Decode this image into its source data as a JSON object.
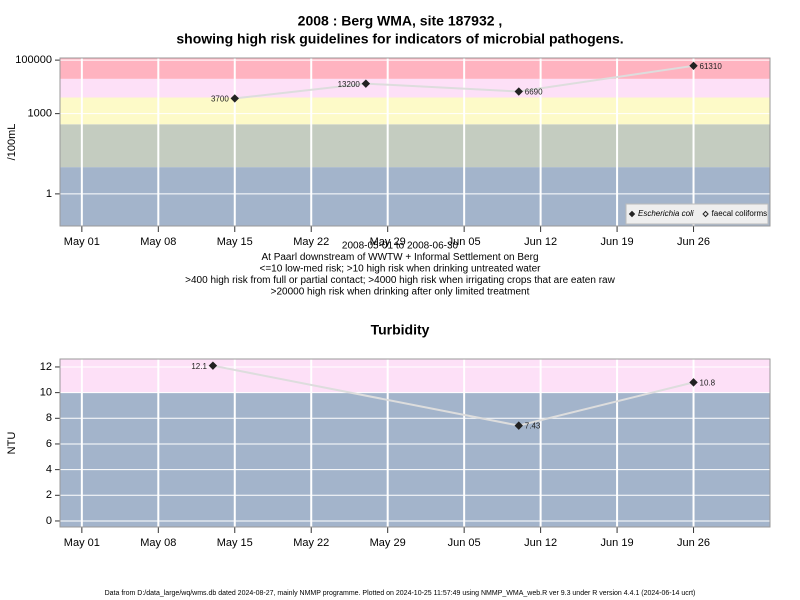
{
  "chart_data": [
    {
      "type": "line",
      "title": [
        "2008 : Berg WMA, site 187932 ,",
        "showing high risk guidelines for indicators of microbial pathogens."
      ],
      "y_label": "/100mL",
      "log_y": true,
      "ylim": [
        0.063,
        120000
      ],
      "yticks": [
        1,
        1000,
        100000
      ],
      "xlim": [
        "2008-04-29",
        "2008-07-03"
      ],
      "xticks": [
        {
          "value": "2008-05-01",
          "label": "May 01"
        },
        {
          "value": "2008-05-08",
          "label": "May 08"
        },
        {
          "value": "2008-05-15",
          "label": "May 15"
        },
        {
          "value": "2008-05-22",
          "label": "May 22"
        },
        {
          "value": "2008-05-29",
          "label": "May 29"
        },
        {
          "value": "2008-06-05",
          "label": "Jun 05"
        },
        {
          "value": "2008-06-12",
          "label": "Jun 12"
        },
        {
          "value": "2008-06-19",
          "label": "Jun 19"
        },
        {
          "value": "2008-06-26",
          "label": "Jun 26"
        }
      ],
      "grid": true,
      "bands": [
        {
          "to": 10,
          "color": "#a3b4cb"
        },
        {
          "from": 10,
          "to": 400,
          "color": "#c4ccc0"
        },
        {
          "from": 400,
          "to": 4000,
          "color": "#fdfac8"
        },
        {
          "from": 4000,
          "to": 20000,
          "color": "#fde0f7"
        },
        {
          "from": 20000,
          "color": "#ffb3c0"
        }
      ],
      "x": [
        "2008-05-15",
        "2008-05-27",
        "2008-06-10",
        "2008-06-26"
      ],
      "series": [
        {
          "name": "Escherichia coli",
          "color": "#222222",
          "marker": "diamond",
          "values": [
            3700,
            13200,
            6690,
            61310
          ]
        },
        {
          "name": "faecal coliforms",
          "color": "#222222",
          "marker": "open-diamond",
          "values": [
            null,
            null,
            null,
            null
          ]
        }
      ],
      "line_color": "#dddddd",
      "data_labels": true,
      "legend": "bottom-right",
      "notes": [
        "2008-05-01 to 2008-06-30",
        "At Paarl downstream of WWTW + Informal Settlement on Berg",
        "<=10 low-med risk; >10 high risk when drinking untreated water",
        ">400 high risk from full or partial contact; >4000 high risk when irrigating crops that are eaten raw",
        ">20000 high risk when drinking after only limited treatment"
      ]
    },
    {
      "type": "line",
      "title": [
        "Turbidity"
      ],
      "y_label": "NTU",
      "log_y": false,
      "ylim": [
        -0.47,
        12.62
      ],
      "yticks": [
        0,
        2,
        4,
        6,
        8,
        10,
        12
      ],
      "xlim": [
        "2008-04-29",
        "2008-07-03"
      ],
      "xticks": [
        {
          "value": "2008-05-01",
          "label": "May 01"
        },
        {
          "value": "2008-05-08",
          "label": "May 08"
        },
        {
          "value": "2008-05-15",
          "label": "May 15"
        },
        {
          "value": "2008-05-22",
          "label": "May 22"
        },
        {
          "value": "2008-05-29",
          "label": "May 29"
        },
        {
          "value": "2008-06-05",
          "label": "Jun 05"
        },
        {
          "value": "2008-06-12",
          "label": "Jun 12"
        },
        {
          "value": "2008-06-19",
          "label": "Jun 19"
        },
        {
          "value": "2008-06-26",
          "label": "Jun 26"
        }
      ],
      "grid": true,
      "bands": [
        {
          "to": 10,
          "color": "#a3b4cb"
        },
        {
          "from": 10,
          "color": "#fde0f7"
        }
      ],
      "x": [
        "2008-05-13",
        "2008-06-10",
        "2008-06-26"
      ],
      "series": [
        {
          "color": "#222222",
          "marker": "diamond",
          "values": [
            12.1,
            7.43,
            10.8
          ]
        }
      ],
      "line_color": "#dddddd",
      "data_labels": true
    }
  ],
  "footer": "Data from D:/data_large/wq/wms.db dated 2024-08-27, mainly NMMP programme. Plotted on 2024-10-25 11:57:49 using NMMP_WMA_web.R ver 9.3 under R version 4.4.1 (2024-06-14 ucrt)"
}
